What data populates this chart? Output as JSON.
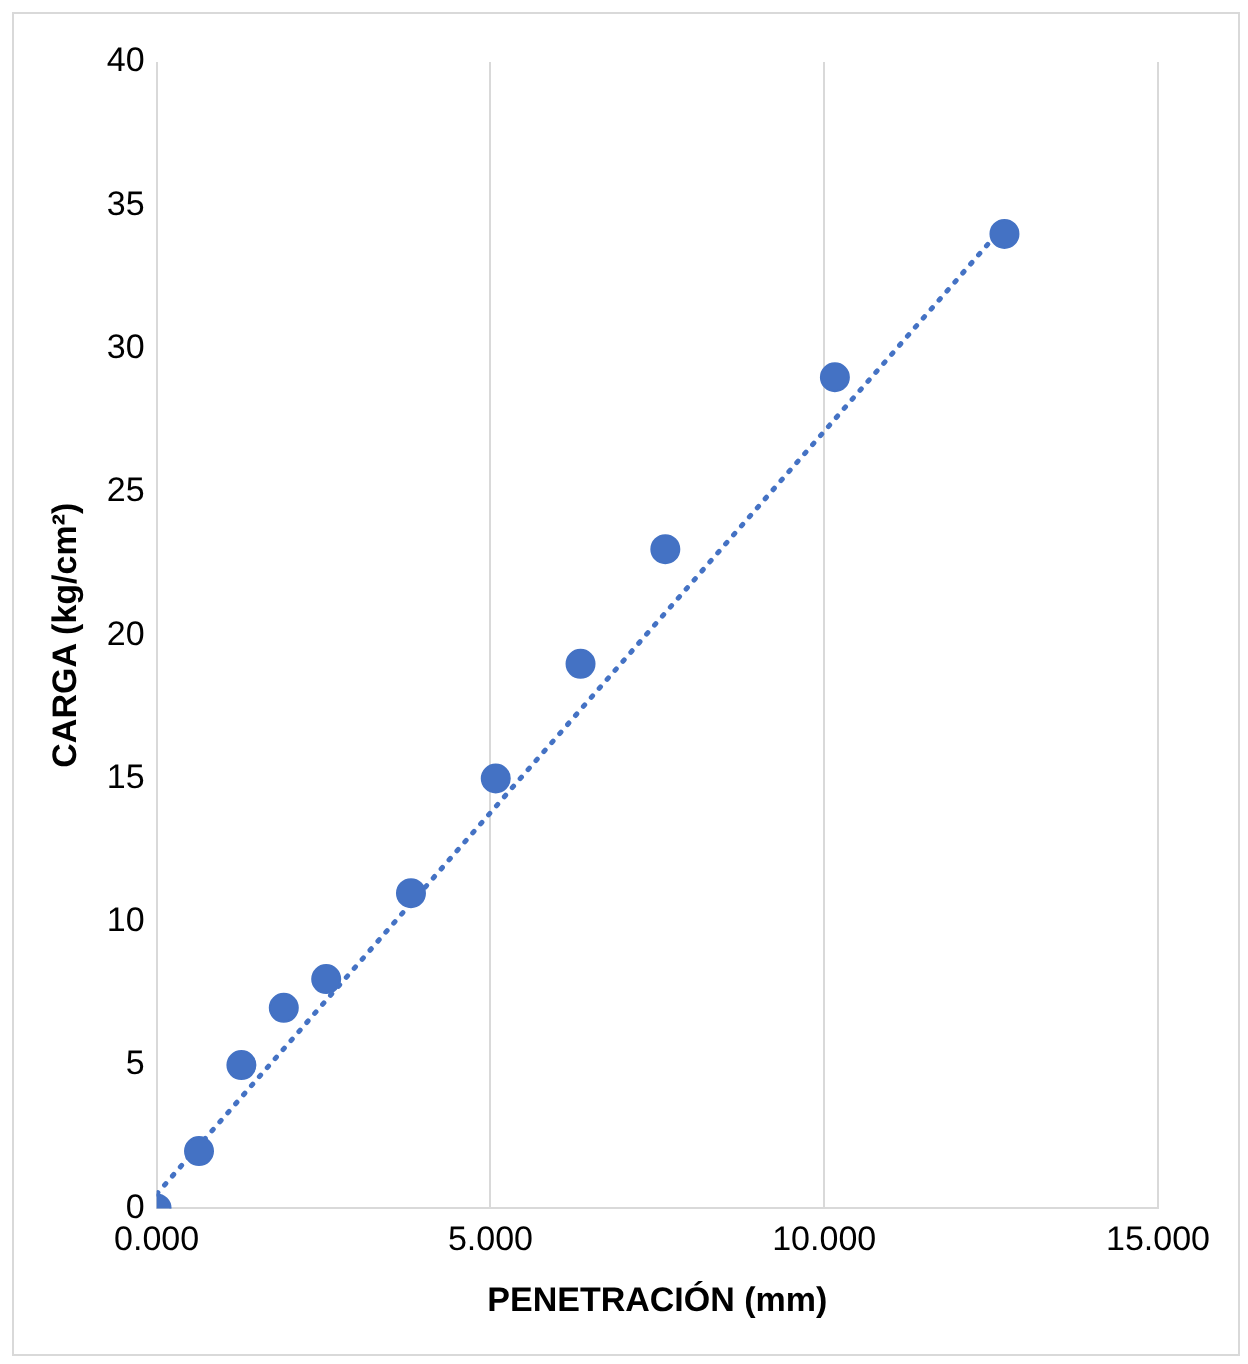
{
  "chart_data": {
    "type": "scatter",
    "xlabel": "PENETRACIÓN (mm)",
    "ylabel": "CARGA (kg/cm²)",
    "xlim": [
      0,
      15
    ],
    "xticks": [
      {
        "value": 0,
        "label": "0.000"
      },
      {
        "value": 5,
        "label": "5.000"
      },
      {
        "value": 10,
        "label": "10.000"
      },
      {
        "value": 15,
        "label": "15.000"
      }
    ],
    "ylim": [
      0,
      40
    ],
    "yticks": [
      0,
      5,
      10,
      15,
      20,
      25,
      30,
      35,
      40
    ],
    "grid": "x",
    "legend": false,
    "marker": "circle",
    "series": [
      {
        "color": "#4472c4",
        "x": [
          0,
          0.635,
          1.27,
          1.905,
          2.54,
          3.81,
          5.08,
          6.35,
          7.62,
          10.16,
          12.7
        ],
        "values": [
          0,
          2,
          5,
          7,
          8,
          11,
          15,
          19,
          23,
          29,
          34
        ]
      },
      {
        "type": "line",
        "color": "#4472c4",
        "line_style": "dotted",
        "marker": "none",
        "x": [
          0,
          12.7
        ],
        "values": [
          0.5,
          34.3
        ]
      }
    ]
  }
}
